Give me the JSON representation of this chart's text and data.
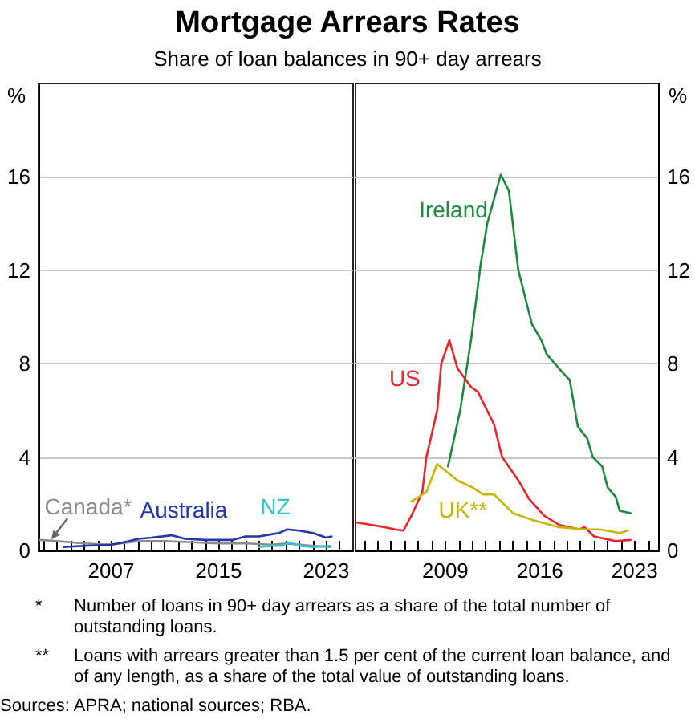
{
  "chart_data": [
    {
      "type": "line",
      "title": "Mortgage Arrears Rates",
      "subtitle": "Share of loan balances in 90+ day arrears",
      "ylabel": "%",
      "marker": "none",
      "grid": "y",
      "xlim": [
        2001.6,
        2025
      ],
      "xticks": [
        {
          "value": 2002,
          "label": null
        },
        {
          "value": 2003,
          "label": null
        },
        {
          "value": 2004,
          "label": null
        },
        {
          "value": 2005,
          "label": null
        },
        {
          "value": 2006,
          "label": null
        },
        {
          "value": 2007,
          "label": "2007"
        },
        {
          "value": 2008,
          "label": null
        },
        {
          "value": 2009,
          "label": null
        },
        {
          "value": 2010,
          "label": null
        },
        {
          "value": 2011,
          "label": null
        },
        {
          "value": 2012,
          "label": null
        },
        {
          "value": 2013,
          "label": null
        },
        {
          "value": 2014,
          "label": null
        },
        {
          "value": 2015,
          "label": "2015"
        },
        {
          "value": 2016,
          "label": null
        },
        {
          "value": 2017,
          "label": null
        },
        {
          "value": 2018,
          "label": null
        },
        {
          "value": 2019,
          "label": null
        },
        {
          "value": 2020,
          "label": null
        },
        {
          "value": 2021,
          "label": null
        },
        {
          "value": 2022,
          "label": null
        },
        {
          "value": 2023,
          "label": "2023"
        },
        {
          "value": 2024,
          "label": null
        }
      ],
      "ylim": [
        0,
        20
      ],
      "yticks": [
        0,
        4,
        8,
        12,
        16
      ],
      "series": [
        {
          "name": "Canada*",
          "color": "#8c8c8c",
          "x": [
            2001.7,
            2003,
            2005,
            2007,
            2009,
            2011,
            2013,
            2015,
            2017,
            2019,
            2020,
            2021,
            2022,
            2023.3
          ],
          "values": [
            0.45,
            0.4,
            0.3,
            0.25,
            0.4,
            0.4,
            0.35,
            0.3,
            0.3,
            0.25,
            0.3,
            0.25,
            0.2,
            0.15
          ]
        },
        {
          "name": "Australia",
          "color": "#2236b0",
          "x": [
            2003.5,
            2005,
            2007,
            2008,
            2009,
            2010,
            2011.5,
            2012.5,
            2014,
            2016,
            2017,
            2018,
            2019,
            2019.5,
            2020.1,
            2021,
            2022,
            2023,
            2023.4
          ],
          "values": [
            0.15,
            0.2,
            0.25,
            0.35,
            0.5,
            0.55,
            0.65,
            0.5,
            0.45,
            0.45,
            0.6,
            0.6,
            0.7,
            0.75,
            0.9,
            0.85,
            0.75,
            0.55,
            0.6
          ]
        },
        {
          "name": "NZ",
          "color": "#2ec4d4",
          "x": [
            2018,
            2019,
            2019.7,
            2020.2,
            2021,
            2022,
            2023.3
          ],
          "values": [
            0.15,
            0.2,
            0.2,
            0.35,
            0.2,
            0.15,
            0.2
          ]
        }
      ],
      "annotations": [
        "* Number of loans in 90+ day arrears as a share of the total number of outstanding loans.",
        "** Loans with arrears greater than 1.5 per cent of the current loan balance, and of any length, as a share of the total value of outstanding loans.",
        "Sources: APRA; national sources; RBA."
      ]
    },
    {
      "type": "line",
      "ylabel": "%",
      "marker": "none",
      "grid": "y",
      "xlim": [
        2002.3,
        2024.8
      ],
      "xticks": [
        {
          "value": 2003,
          "label": null
        },
        {
          "value": 2004,
          "label": null
        },
        {
          "value": 2005,
          "label": null
        },
        {
          "value": 2006,
          "label": null
        },
        {
          "value": 2007,
          "label": null
        },
        {
          "value": 2008,
          "label": null
        },
        {
          "value": 2009,
          "label": "2009"
        },
        {
          "value": 2010,
          "label": null
        },
        {
          "value": 2011,
          "label": null
        },
        {
          "value": 2012,
          "label": null
        },
        {
          "value": 2013,
          "label": null
        },
        {
          "value": 2014,
          "label": null
        },
        {
          "value": 2015,
          "label": null
        },
        {
          "value": 2016,
          "label": "2016"
        },
        {
          "value": 2017,
          "label": null
        },
        {
          "value": 2018,
          "label": null
        },
        {
          "value": 2019,
          "label": null
        },
        {
          "value": 2020,
          "label": null
        },
        {
          "value": 2021,
          "label": null
        },
        {
          "value": 2022,
          "label": null
        },
        {
          "value": 2023,
          "label": "2023"
        },
        {
          "value": 2024,
          "label": null
        }
      ],
      "ylim": [
        0,
        20
      ],
      "yticks": [
        0,
        4,
        8,
        12,
        16
      ],
      "series": [
        {
          "name": "Ireland",
          "color": "#1b8a3c",
          "x": [
            2009.2,
            2010.1,
            2010.9,
            2011.6,
            2012.1,
            2013.1,
            2013.7,
            2014.4,
            2015.4,
            2016.1,
            2016.5,
            2017.4,
            2018.2,
            2018.8,
            2019.5,
            2019.9,
            2020.6,
            2021,
            2021.6,
            2021.9,
            2022.7
          ],
          "values": [
            3.6,
            6,
            9,
            12.2,
            14,
            16.1,
            15.4,
            12,
            9.7,
            9,
            8.4,
            7.8,
            7.3,
            5.3,
            4.8,
            4,
            3.6,
            2.7,
            2.3,
            1.7,
            1.6
          ]
        },
        {
          "name": "US",
          "color": "#e8262c",
          "x": [
            2002.4,
            2003.5,
            2004.5,
            2005.3,
            2005.9,
            2006.5,
            2007.3,
            2007.6,
            2008.4,
            2008.7,
            2009.3,
            2009.9,
            2010.9,
            2011.4,
            2012.6,
            2013.2,
            2014.4,
            2015.2,
            2016.3,
            2017.4,
            2018.9,
            2019.3,
            2020,
            2021.6,
            2022.7
          ],
          "values": [
            1.2,
            1.1,
            1,
            0.9,
            0.85,
            1.5,
            2.5,
            4,
            6,
            8,
            9,
            7.8,
            7,
            6.8,
            5.4,
            4,
            3,
            2.2,
            1.5,
            1.1,
            0.9,
            1,
            0.6,
            0.4,
            0.45
          ]
        },
        {
          "name": "UK**",
          "color": "#c9b400",
          "x": [
            2006.5,
            2007.6,
            2008.4,
            2009.9,
            2011,
            2011.8,
            2012.6,
            2014,
            2015.5,
            2017.4,
            2019.3,
            2020.4,
            2021.9,
            2022.5
          ],
          "values": [
            2.1,
            2.5,
            3.7,
            3,
            2.7,
            2.4,
            2.4,
            1.6,
            1.3,
            1,
            0.9,
            0.9,
            0.75,
            0.85
          ]
        }
      ]
    }
  ]
}
